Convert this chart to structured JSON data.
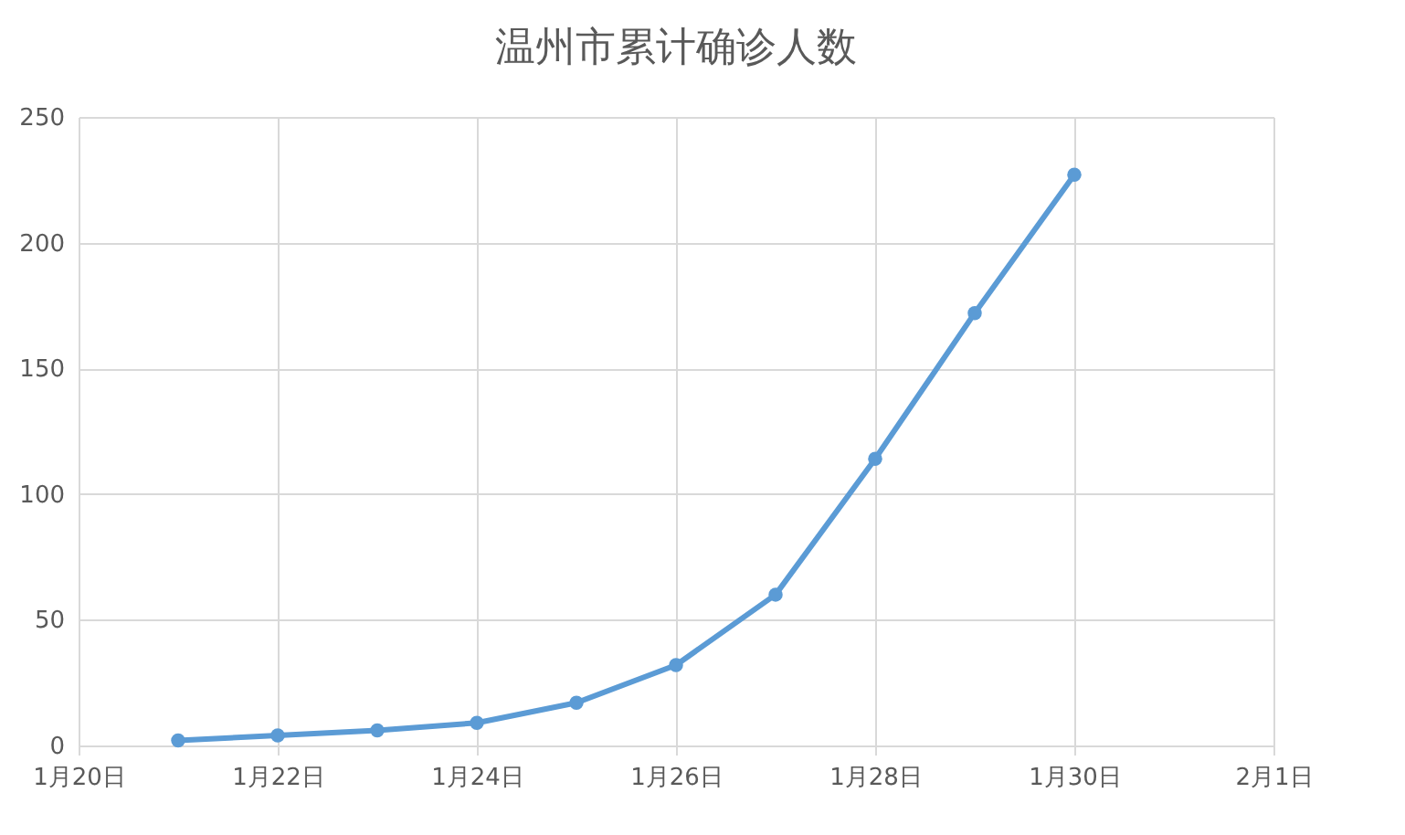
{
  "chart_data": {
    "type": "line",
    "title": "温州市累计确诊人数",
    "x": [
      "--01-21",
      "--01-22",
      "--01-23",
      "--01-24",
      "--01-25",
      "--01-26",
      "--01-27",
      "--01-28",
      "--01-29",
      "--01-30"
    ],
    "series": [
      {
        "color": "#5b9bd5",
        "values": [
          2,
          4,
          6,
          9,
          17,
          32,
          60,
          114,
          172,
          227
        ]
      }
    ],
    "xlim": [
      "--01-20",
      "--02-01"
    ],
    "xticks": [
      {
        "value": "--01-20",
        "label": "1月20日"
      },
      {
        "value": "--01-22",
        "label": "1月22日"
      },
      {
        "value": "--01-24",
        "label": "1月24日"
      },
      {
        "value": "--01-26",
        "label": "1月26日"
      },
      {
        "value": "--01-28",
        "label": "1月28日"
      },
      {
        "value": "--01-30",
        "label": "1月30日"
      },
      {
        "value": "--02-01",
        "label": "2月1日"
      }
    ],
    "ylim": [
      0,
      250
    ],
    "yticks": [
      0,
      50,
      100,
      150,
      200,
      250
    ],
    "grid": true,
    "marker": "circle",
    "line_style": "solid"
  }
}
